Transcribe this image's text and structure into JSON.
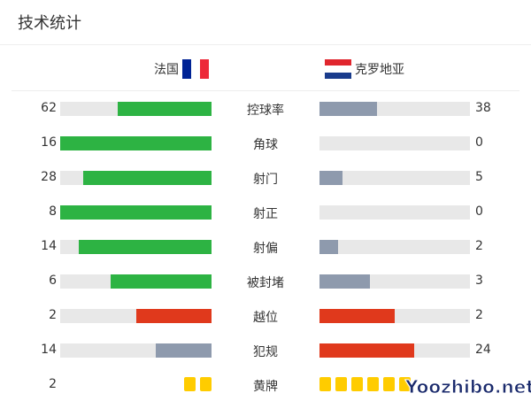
{
  "header": {
    "title": "技术统计"
  },
  "teams": {
    "home": {
      "name": "法国",
      "flag_colors": [
        "#002395",
        "#ffffff",
        "#ed2939"
      ]
    },
    "away": {
      "name": "克罗地亚",
      "flag_colors": [
        "#e0262e",
        "#ffffff",
        "#1a3c8c"
      ]
    }
  },
  "colors": {
    "green": "#2db343",
    "gray": "#8e9aad",
    "red": "#e0391c",
    "track": "#e8e8e8",
    "yellow": "#ffcc00"
  },
  "stats": [
    {
      "label": "控球率",
      "home": "62",
      "away": "38",
      "home_color": "green",
      "away_color": "gray"
    },
    {
      "label": "角球",
      "home": "16",
      "away": "0",
      "home_color": "green",
      "away_color": "gray"
    },
    {
      "label": "射门",
      "home": "28",
      "away": "5",
      "home_color": "green",
      "away_color": "gray"
    },
    {
      "label": "射正",
      "home": "8",
      "away": "0",
      "home_color": "green",
      "away_color": "gray"
    },
    {
      "label": "射偏",
      "home": "14",
      "away": "2",
      "home_color": "green",
      "away_color": "gray"
    },
    {
      "label": "被封堵",
      "home": "6",
      "away": "3",
      "home_color": "green",
      "away_color": "gray"
    },
    {
      "label": "越位",
      "home": "2",
      "away": "2",
      "home_color": "red",
      "away_color": "red"
    },
    {
      "label": "犯规",
      "home": "14",
      "away": "24",
      "home_color": "gray",
      "away_color": "red"
    }
  ],
  "yellow_cards": {
    "label": "黄牌",
    "home": "2",
    "home_count": 2,
    "away_count": 6
  },
  "watermark": "Yoozhibo.net"
}
